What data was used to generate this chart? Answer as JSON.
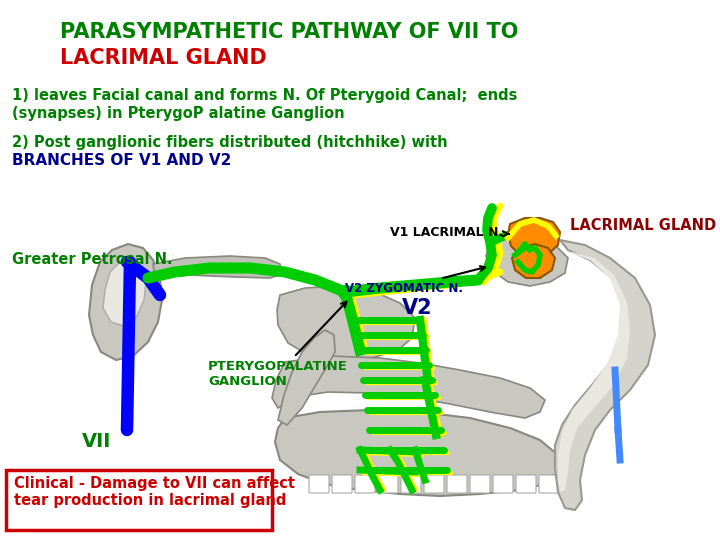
{
  "title_line1": "PARASYMPATHETIC PATHWAY OF VII TO",
  "title_line2": "LACRIMAL GLAND",
  "title_color1": "#008000",
  "title_color2": "#CC0000",
  "title_fontsize": 15,
  "text1a": "1) leaves Facial canal and forms N. Of Pterygoid Canal;  ends",
  "text1b": "(synapses) in PterygoP alatine Ganglion",
  "text2a": "2) Post ganglionic fibers distributed (hitchhike) with",
  "text2b": "BRANCHES OF V1 AND V2",
  "text_color_green": "#008000",
  "text_color_blue": "#00008B",
  "label_v1": "V1 LACRIMAL N.",
  "label_v1_color": "#000000",
  "label_lacrimal": "LACRIMAL GLAND",
  "label_lacrimal_color": "#8B0000",
  "label_greater": "Greater Petrosal N.",
  "label_greater_color": "#008000",
  "label_v2zygo": "V2 ZYGOMATIC N.",
  "label_v2zygo_color": "#00008B",
  "label_v2": "V2",
  "label_v2_color": "#00008B",
  "label_pterygo1": "PTERYGOPALATINE",
  "label_pterygo2": "GANGLION",
  "label_pterygo_color": "#008000",
  "label_vii": "VII",
  "label_vii_color": "#008000",
  "clinical_text": "Clinical - Damage to VII can affect\ntear production in lacrimal gland",
  "clinical_color": "#CC0000",
  "clinical_border": "#CC0000",
  "bg_color": "#ffffff",
  "green": "#00CC00",
  "yellow": "#FFFF00",
  "blue": "#0000FF",
  "orange": "#FF8C00"
}
